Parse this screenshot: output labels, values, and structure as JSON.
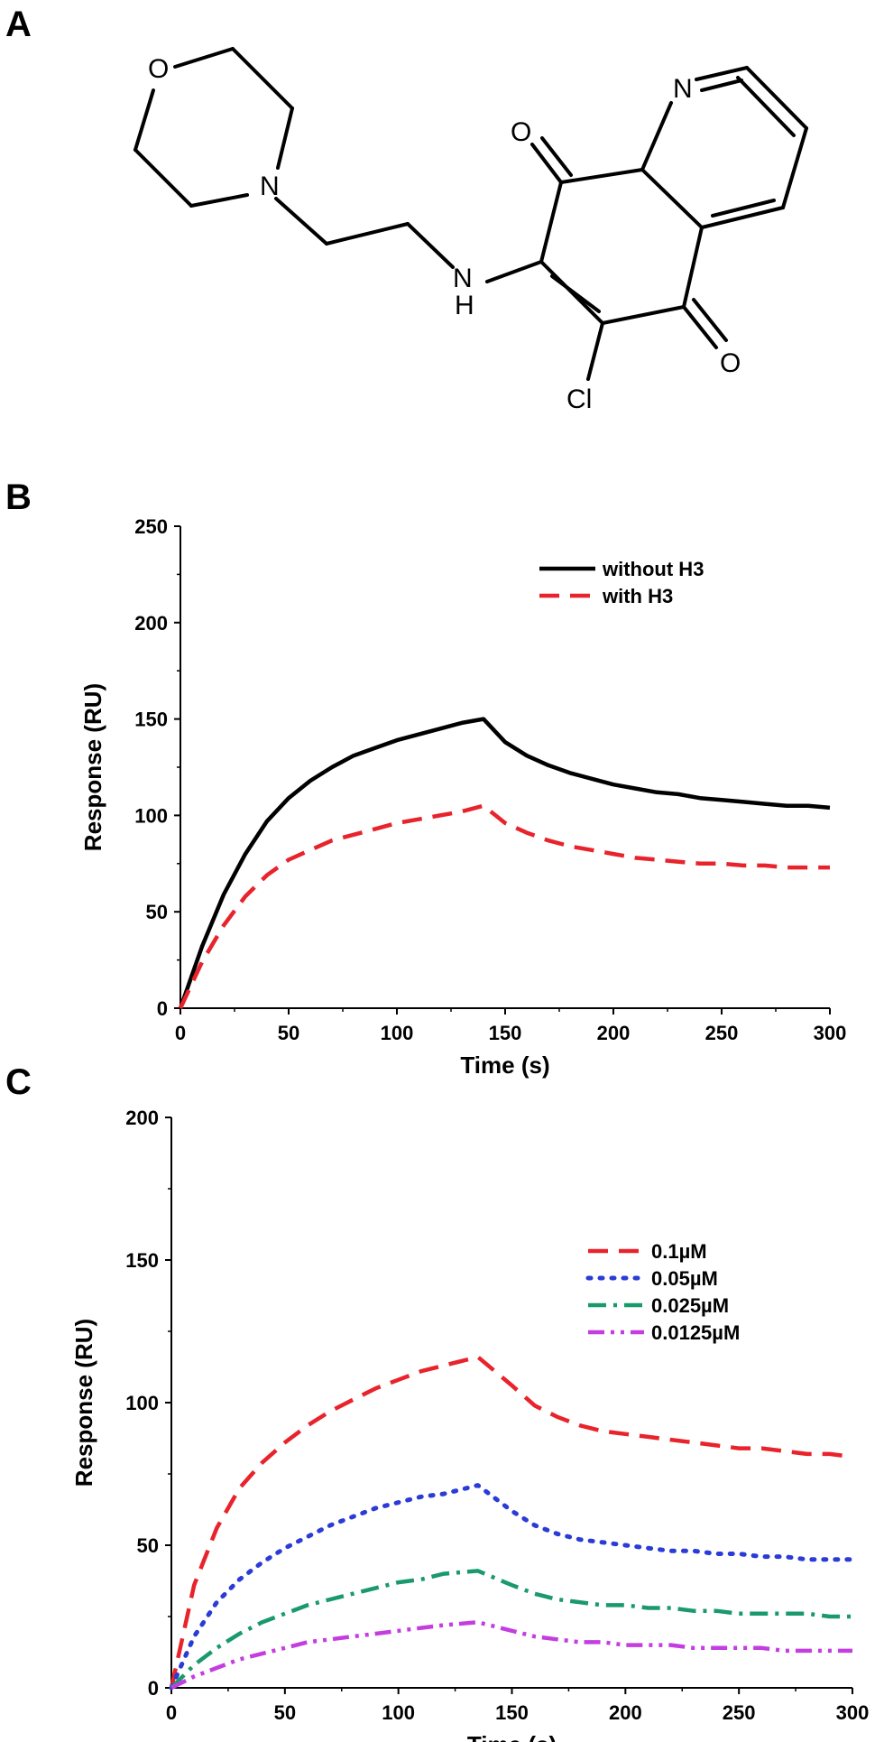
{
  "panels": {
    "a": "A",
    "b": "B",
    "c": "C"
  },
  "molecule": {
    "atoms": {
      "o_morpholine": "O",
      "n_morpholine": "N",
      "nh_n": "N",
      "nh_h": "H",
      "n_pyridine": "N",
      "o_top": "O",
      "o_bottom": "O",
      "cl": "Cl"
    }
  },
  "chart_data": [
    {
      "type": "line",
      "panel": "B",
      "title": "",
      "xlabel": "Time (s)",
      "ylabel": "Response (RU)",
      "xlim": [
        0,
        300
      ],
      "ylim": [
        0,
        250
      ],
      "xticks": [
        0,
        50,
        100,
        150,
        200,
        250,
        300
      ],
      "yticks": [
        0,
        50,
        100,
        150,
        200,
        250
      ],
      "legend_position": "top-right",
      "grid": false,
      "series": [
        {
          "name": "without H3",
          "color": "#000000",
          "style": "solid",
          "x": [
            0,
            10,
            20,
            30,
            40,
            50,
            60,
            70,
            80,
            90,
            100,
            110,
            120,
            130,
            140,
            150,
            160,
            170,
            180,
            190,
            200,
            210,
            220,
            230,
            240,
            250,
            260,
            270,
            280,
            290,
            300
          ],
          "y": [
            0,
            32,
            59,
            80,
            97,
            109,
            118,
            125,
            131,
            135,
            139,
            142,
            145,
            148,
            150,
            138,
            131,
            126,
            122,
            119,
            116,
            114,
            112,
            111,
            109,
            108,
            107,
            106,
            105,
            105,
            104
          ]
        },
        {
          "name": "with H3",
          "color": "#e8232b",
          "style": "dashed",
          "x": [
            0,
            10,
            20,
            30,
            40,
            50,
            60,
            70,
            80,
            90,
            100,
            110,
            120,
            130,
            140,
            150,
            160,
            170,
            180,
            190,
            200,
            210,
            220,
            230,
            240,
            250,
            260,
            270,
            280,
            290,
            300
          ],
          "y": [
            0,
            24,
            43,
            58,
            69,
            77,
            82,
            87,
            90,
            93,
            96,
            98,
            100,
            102,
            105,
            96,
            91,
            87,
            84,
            82,
            80,
            78,
            77,
            76,
            75,
            75,
            74,
            74,
            73,
            73,
            73
          ]
        }
      ]
    },
    {
      "type": "line",
      "panel": "C",
      "title": "",
      "xlabel": "Time (s)",
      "ylabel": "Response (RU)",
      "xlim": [
        0,
        300
      ],
      "ylim": [
        0,
        200
      ],
      "xticks": [
        0,
        50,
        100,
        150,
        200,
        250,
        300
      ],
      "yticks": [
        0,
        50,
        100,
        150,
        200
      ],
      "legend_position": "top-right",
      "grid": false,
      "series": [
        {
          "name": "0.1µM",
          "color": "#e8232b",
          "style": "dashed",
          "x": [
            0,
            10,
            20,
            30,
            40,
            50,
            60,
            70,
            80,
            90,
            100,
            110,
            120,
            135,
            150,
            160,
            170,
            180,
            190,
            200,
            210,
            220,
            230,
            240,
            250,
            260,
            270,
            280,
            290,
            300
          ],
          "y": [
            0,
            36,
            56,
            70,
            79,
            86,
            92,
            97,
            101,
            105,
            108,
            111,
            113,
            116,
            106,
            99,
            95,
            92,
            90,
            89,
            88,
            87,
            86,
            85,
            84,
            84,
            83,
            82,
            82,
            81
          ]
        },
        {
          "name": "0.05µM",
          "color": "#2b3bd6",
          "style": "dotted",
          "x": [
            0,
            10,
            20,
            30,
            40,
            50,
            60,
            70,
            80,
            90,
            100,
            110,
            120,
            135,
            150,
            160,
            170,
            180,
            190,
            200,
            210,
            220,
            230,
            240,
            250,
            260,
            270,
            280,
            290,
            300
          ],
          "y": [
            0,
            18,
            30,
            38,
            44,
            49,
            53,
            57,
            60,
            63,
            65,
            67,
            68,
            71,
            62,
            57,
            54,
            52,
            51,
            50,
            49,
            48,
            48,
            47,
            47,
            46,
            46,
            45,
            45,
            45
          ]
        },
        {
          "name": "0.025µM",
          "color": "#1a9a6c",
          "style": "dashdot",
          "x": [
            0,
            10,
            20,
            30,
            40,
            50,
            60,
            70,
            80,
            90,
            100,
            110,
            120,
            135,
            150,
            160,
            170,
            180,
            190,
            200,
            210,
            220,
            230,
            240,
            250,
            260,
            270,
            280,
            290,
            300
          ],
          "y": [
            0,
            8,
            14,
            19,
            23,
            26,
            29,
            31,
            33,
            35,
            37,
            38,
            40,
            41,
            36,
            33,
            31,
            30,
            29,
            29,
            28,
            28,
            27,
            27,
            26,
            26,
            26,
            26,
            25,
            25
          ]
        },
        {
          "name": "0.0125µM",
          "color": "#c43de0",
          "style": "dashdotdot",
          "x": [
            0,
            10,
            20,
            30,
            40,
            50,
            60,
            70,
            80,
            90,
            100,
            110,
            120,
            135,
            150,
            160,
            170,
            180,
            190,
            200,
            210,
            220,
            230,
            240,
            250,
            260,
            270,
            280,
            290,
            300
          ],
          "y": [
            0,
            4,
            7,
            10,
            12,
            14,
            16,
            17,
            18,
            19,
            20,
            21,
            22,
            23,
            20,
            18,
            17,
            16,
            16,
            15,
            15,
            15,
            14,
            14,
            14,
            14,
            13,
            13,
            13,
            13
          ]
        }
      ]
    }
  ]
}
